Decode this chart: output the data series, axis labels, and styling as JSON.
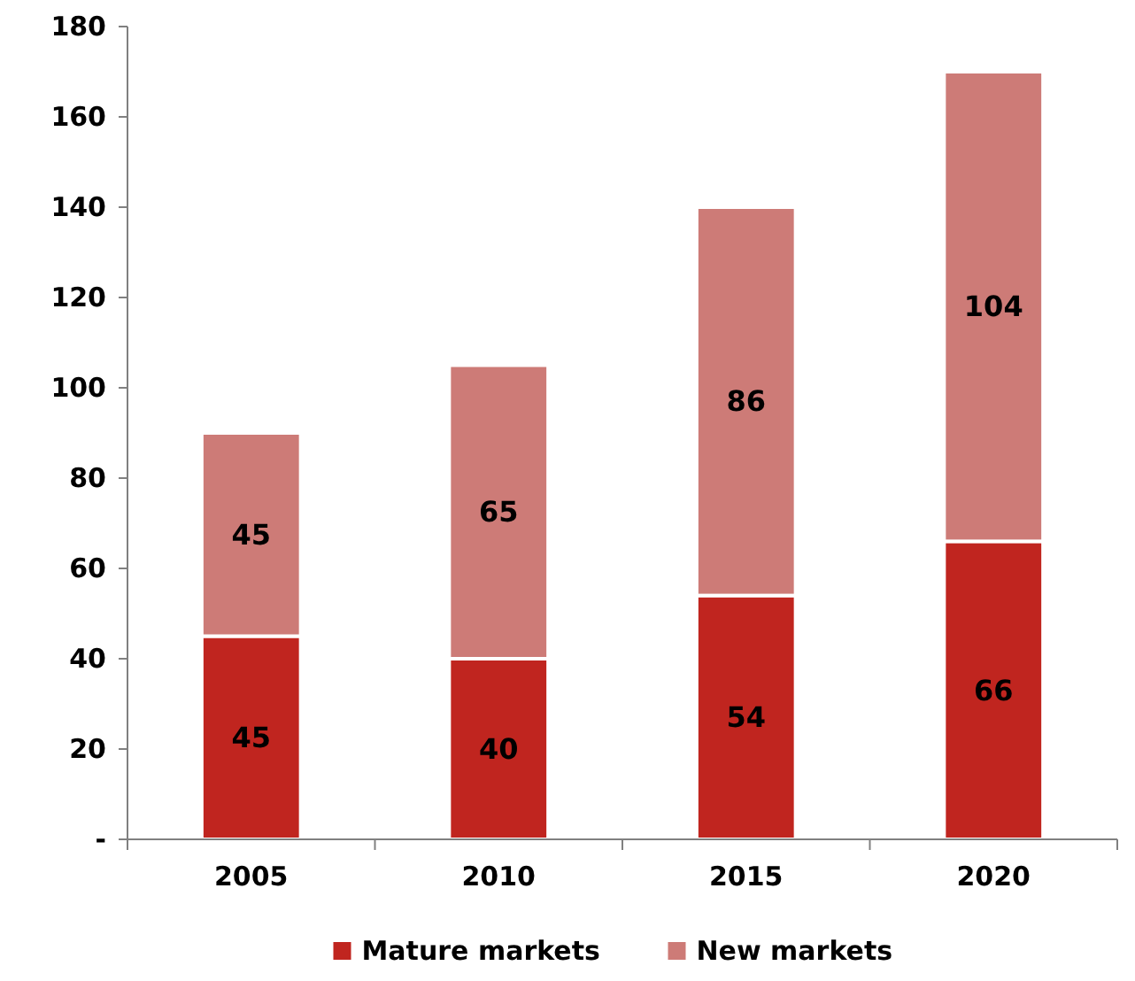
{
  "chart_data": {
    "type": "bar",
    "stacked": true,
    "categories": [
      "2005",
      "2010",
      "2015",
      "2020"
    ],
    "series": [
      {
        "name": "Mature markets",
        "color": "#c0251f",
        "values": [
          45,
          40,
          54,
          66
        ]
      },
      {
        "name": "New markets",
        "color": "#cd7b77",
        "values": [
          45,
          65,
          86,
          104
        ]
      }
    ],
    "ylim": [
      0,
      180
    ],
    "yticks": [
      {
        "value": 0,
        "label": "-"
      },
      20,
      40,
      60,
      80,
      100,
      120,
      140,
      160,
      180
    ],
    "data_labels": true,
    "legend": "bottom",
    "grid": false
  }
}
